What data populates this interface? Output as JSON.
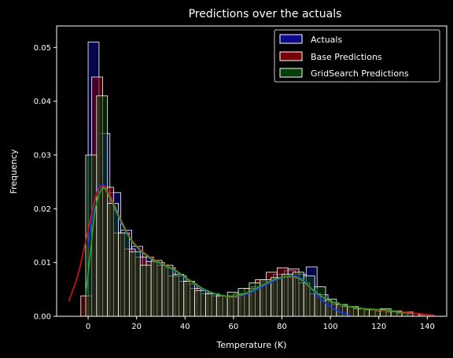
{
  "chart_data": {
    "type": "bar",
    "subtype": "overlaid-histogram-with-kde",
    "title": "Predictions over the actuals",
    "xlabel": "Temperature (K)",
    "ylabel": "Frequency",
    "xlim": [
      -13,
      148
    ],
    "ylim": [
      0,
      0.054
    ],
    "xticks": [
      0,
      20,
      40,
      60,
      80,
      100,
      120,
      140
    ],
    "yticks": [
      0.0,
      0.01,
      0.02,
      0.03,
      0.04,
      0.05
    ],
    "ytick_labels": [
      "0.00",
      "0.01",
      "0.02",
      "0.03",
      "0.04",
      "0.05"
    ],
    "grid": false,
    "legend_position": "top-right",
    "series": [
      {
        "name": "Actuals",
        "color": "#0a0a8a",
        "line_color": "#1133ff",
        "bins": [
          [
            0,
            4.5,
            0.051
          ],
          [
            4.5,
            9,
            0.034
          ],
          [
            9,
            13.5,
            0.023
          ],
          [
            13.5,
            18,
            0.016
          ],
          [
            18,
            22.5,
            0.013
          ],
          [
            22.5,
            27,
            0.011
          ],
          [
            27,
            31.5,
            0.01
          ],
          [
            31.5,
            36,
            0.009
          ],
          [
            36,
            40.5,
            0.0075
          ],
          [
            40.5,
            45,
            0.006
          ],
          [
            45,
            49.5,
            0.0048
          ],
          [
            49.5,
            54,
            0.0042
          ],
          [
            54,
            58.5,
            0.0038
          ],
          [
            58.5,
            63,
            0.0035
          ],
          [
            63,
            67.5,
            0.0042
          ],
          [
            67.5,
            72,
            0.0055
          ],
          [
            72,
            76.5,
            0.0065
          ],
          [
            76.5,
            81,
            0.0078
          ],
          [
            81,
            85.5,
            0.0085
          ],
          [
            85.5,
            90,
            0.0078
          ],
          [
            90,
            94.5,
            0.0092
          ],
          [
            94.5,
            99,
            0.004
          ],
          [
            99,
            103.5,
            0.0025
          ],
          [
            103.5,
            108,
            0.0018
          ]
        ],
        "kde_x": [
          0,
          3,
          6,
          9,
          13,
          18,
          24,
          30,
          36,
          42,
          48,
          54,
          60,
          66,
          72,
          78,
          84,
          88,
          92,
          96,
          100,
          104,
          108
        ],
        "kde_y": [
          0.013,
          0.022,
          0.0245,
          0.022,
          0.018,
          0.014,
          0.0115,
          0.0098,
          0.0085,
          0.0066,
          0.0049,
          0.004,
          0.0036,
          0.0042,
          0.0055,
          0.0068,
          0.0075,
          0.007,
          0.0052,
          0.0032,
          0.0018,
          0.0008,
          0.0002
        ]
      },
      {
        "name": "Base Predictions",
        "color": "#7a0008",
        "line_color": "#dd1111",
        "bins": [
          [
            -3,
            1.5,
            0.0038
          ],
          [
            1.5,
            6,
            0.0445
          ],
          [
            6,
            10.5,
            0.024
          ],
          [
            10.5,
            15,
            0.0155
          ],
          [
            15,
            19.5,
            0.0125
          ],
          [
            19.5,
            24,
            0.011
          ],
          [
            24,
            28.5,
            0.0102
          ],
          [
            28.5,
            33,
            0.0095
          ],
          [
            33,
            37.5,
            0.0075
          ],
          [
            37.5,
            42,
            0.0065
          ],
          [
            42,
            46.5,
            0.0052
          ],
          [
            46.5,
            51,
            0.0042
          ],
          [
            51,
            55.5,
            0.0038
          ],
          [
            55.5,
            60,
            0.0038
          ],
          [
            60,
            64.5,
            0.0042
          ],
          [
            64.5,
            69,
            0.0052
          ],
          [
            69,
            73.5,
            0.0068
          ],
          [
            73.5,
            78,
            0.0082
          ],
          [
            78,
            82.5,
            0.009
          ],
          [
            82.5,
            87,
            0.0088
          ],
          [
            87,
            91.5,
            0.0062
          ],
          [
            91.5,
            96,
            0.0042
          ],
          [
            96,
            100.5,
            0.003
          ],
          [
            100.5,
            105,
            0.0022
          ],
          [
            105,
            109.5,
            0.0018
          ],
          [
            109.5,
            114,
            0.0014
          ],
          [
            114,
            118.5,
            0.0012
          ],
          [
            118.5,
            123,
            0.001
          ],
          [
            123,
            127.5,
            0.0008
          ],
          [
            127.5,
            132,
            0.0006
          ],
          [
            132,
            136.5,
            0.0005
          ],
          [
            136.5,
            141,
            0.0003
          ]
        ],
        "kde_x": [
          -8,
          -4,
          0,
          3,
          6,
          9,
          13,
          18,
          24,
          30,
          36,
          42,
          48,
          54,
          60,
          66,
          72,
          78,
          84,
          88,
          92,
          96,
          100,
          108,
          116,
          124,
          132,
          138,
          143
        ],
        "kde_y": [
          0.0028,
          0.008,
          0.016,
          0.022,
          0.0242,
          0.0225,
          0.0185,
          0.0142,
          0.0115,
          0.0099,
          0.0086,
          0.0066,
          0.005,
          0.004,
          0.0036,
          0.0044,
          0.0058,
          0.007,
          0.0073,
          0.0067,
          0.0052,
          0.0038,
          0.0028,
          0.0018,
          0.0013,
          0.001,
          0.0007,
          0.0004,
          0.0002
        ]
      },
      {
        "name": "GridSearch Predictions",
        "color": "#063e06",
        "line_color": "#22aa22",
        "bins": [
          [
            -1,
            3.5,
            0.03
          ],
          [
            3.5,
            8,
            0.041
          ],
          [
            8,
            12.5,
            0.021
          ],
          [
            12.5,
            17,
            0.0155
          ],
          [
            17,
            21.5,
            0.012
          ],
          [
            21.5,
            26,
            0.0095
          ],
          [
            26,
            30.5,
            0.0104
          ],
          [
            30.5,
            35,
            0.0095
          ],
          [
            35,
            39.5,
            0.0078
          ],
          [
            39.5,
            44,
            0.0065
          ],
          [
            44,
            48.5,
            0.0048
          ],
          [
            48.5,
            53,
            0.0042
          ],
          [
            53,
            57.5,
            0.0038
          ],
          [
            57.5,
            62,
            0.0045
          ],
          [
            62,
            66.5,
            0.0052
          ],
          [
            66.5,
            71,
            0.0062
          ],
          [
            71,
            75.5,
            0.0068
          ],
          [
            75.5,
            80,
            0.0072
          ],
          [
            80,
            84.5,
            0.0078
          ],
          [
            84.5,
            89,
            0.0082
          ],
          [
            89,
            93.5,
            0.0075
          ],
          [
            93.5,
            98,
            0.0055
          ],
          [
            98,
            102.5,
            0.0032
          ],
          [
            102.5,
            107,
            0.0022
          ],
          [
            107,
            111.5,
            0.0018
          ],
          [
            111.5,
            116,
            0.0014
          ],
          [
            116,
            120.5,
            0.0012
          ],
          [
            120.5,
            125,
            0.0014
          ],
          [
            125,
            129.5,
            0.001
          ],
          [
            129.5,
            134,
            0.0008
          ]
        ],
        "kde_x": [
          -1,
          1,
          3,
          6,
          9,
          13,
          18,
          24,
          30,
          36,
          42,
          48,
          54,
          60,
          66,
          72,
          78,
          84,
          88,
          92,
          96,
          100,
          106,
          112,
          118,
          124,
          130
        ],
        "kde_y": [
          0.004,
          0.012,
          0.02,
          0.0238,
          0.022,
          0.0182,
          0.014,
          0.0113,
          0.0098,
          0.0085,
          0.0067,
          0.005,
          0.004,
          0.0037,
          0.0044,
          0.0058,
          0.007,
          0.0074,
          0.0068,
          0.0052,
          0.0038,
          0.0028,
          0.002,
          0.0015,
          0.0013,
          0.0011,
          0.0006
        ]
      }
    ]
  }
}
